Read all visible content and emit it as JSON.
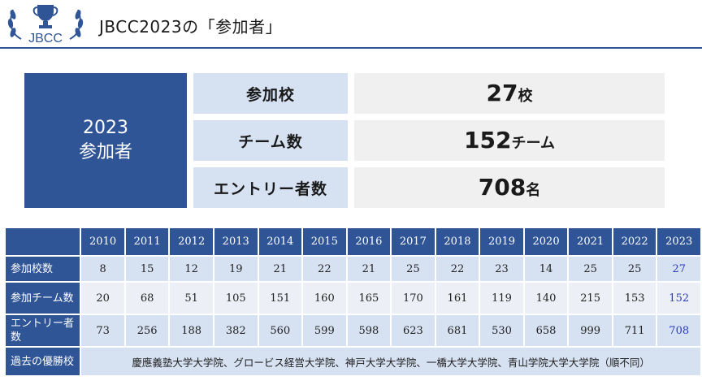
{
  "header": {
    "logo_text": "JBCC",
    "title": "JBCC2023の「参加者」"
  },
  "summary": {
    "label_year": "2023",
    "label_text": "参加者",
    "rows": [
      {
        "key": "参加校",
        "value": "27",
        "unit": "校"
      },
      {
        "key": "チーム数",
        "value": "152",
        "unit": "チーム"
      },
      {
        "key": "エントリー者数",
        "value": "708",
        "unit": "名"
      }
    ]
  },
  "table": {
    "years": [
      "2010",
      "2011",
      "2012",
      "2013",
      "2014",
      "2015",
      "2016",
      "2017",
      "2018",
      "2019",
      "2020",
      "2021",
      "2022",
      "2023"
    ],
    "rows": [
      {
        "label": "参加校数",
        "values": [
          "8",
          "15",
          "12",
          "19",
          "21",
          "22",
          "21",
          "25",
          "22",
          "23",
          "14",
          "25",
          "25",
          "27"
        ]
      },
      {
        "label": "参加チーム数",
        "values": [
          "20",
          "68",
          "51",
          "105",
          "151",
          "160",
          "165",
          "170",
          "161",
          "119",
          "140",
          "215",
          "153",
          "152"
        ]
      },
      {
        "label": "エントリー者数",
        "values": [
          "73",
          "256",
          "188",
          "382",
          "560",
          "599",
          "598",
          "623",
          "681",
          "530",
          "658",
          "999",
          "711",
          "708"
        ]
      }
    ],
    "winners_label": "過去の優勝校",
    "winners_text": "慶應義塾大学大学院、グロービス経営大学院、神戸大学大学院、一橋大学大学院、青山学院大学大学院（順不同）"
  },
  "colors": {
    "brand_blue": "#2f5597",
    "light_blue": "#d6e1f2",
    "highlight_2023": "#2b3bc0"
  }
}
